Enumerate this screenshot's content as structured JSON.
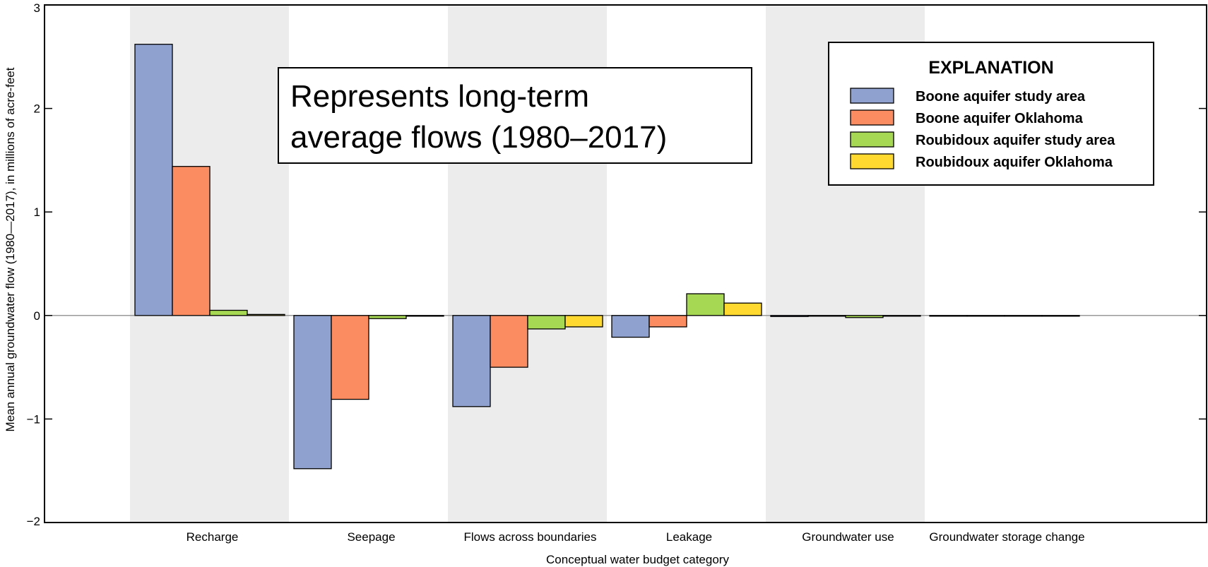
{
  "chart_data": {
    "type": "bar",
    "title": "",
    "xlabel": "Conceptual water budget category",
    "ylabel": "Mean annual groundwater flow (1980—2017), in millions of acre-feet",
    "ylim": [
      -2,
      3
    ],
    "yticks": [
      3,
      2,
      1,
      0,
      -1,
      -2
    ],
    "ytick_labels": [
      "3",
      "2",
      "1",
      "0",
      "−1",
      "−2"
    ],
    "categories": [
      "Recharge",
      "Seepage",
      "Flows across boundaries",
      "Leakage",
      "Groundwater use",
      "Groundwater storage change"
    ],
    "shaded_categories": [
      true,
      false,
      true,
      false,
      true,
      false
    ],
    "series": [
      {
        "name": "Boone aquifer study area",
        "color": "#8fa2cf",
        "values": [
          2.62,
          -1.48,
          -0.88,
          -0.21,
          -0.01,
          0.0
        ]
      },
      {
        "name": "Boone aquifer Oklahoma",
        "color": "#fb8c62",
        "values": [
          1.44,
          -0.81,
          -0.5,
          -0.11,
          -0.005,
          0.0
        ]
      },
      {
        "name": "Roubidoux aquifer study area",
        "color": "#a6d854",
        "values": [
          0.05,
          -0.03,
          -0.13,
          0.21,
          -0.02,
          0.0
        ]
      },
      {
        "name": "Roubidoux aquifer Oklahoma",
        "color": "#ffd92f",
        "values": [
          0.01,
          -0.005,
          -0.11,
          0.12,
          -0.005,
          0.0
        ]
      }
    ],
    "annotation": "Represents long-term average flows (1980–2017)",
    "annotation_lines": [
      "Represents long-term",
      "average flows (1980–2017)"
    ],
    "legend": {
      "title": "EXPLANATION",
      "position": "top-right"
    },
    "grid": false,
    "colors": {
      "background_band": "#ececec",
      "zero_line": "#999999",
      "axis": "#000000"
    }
  }
}
